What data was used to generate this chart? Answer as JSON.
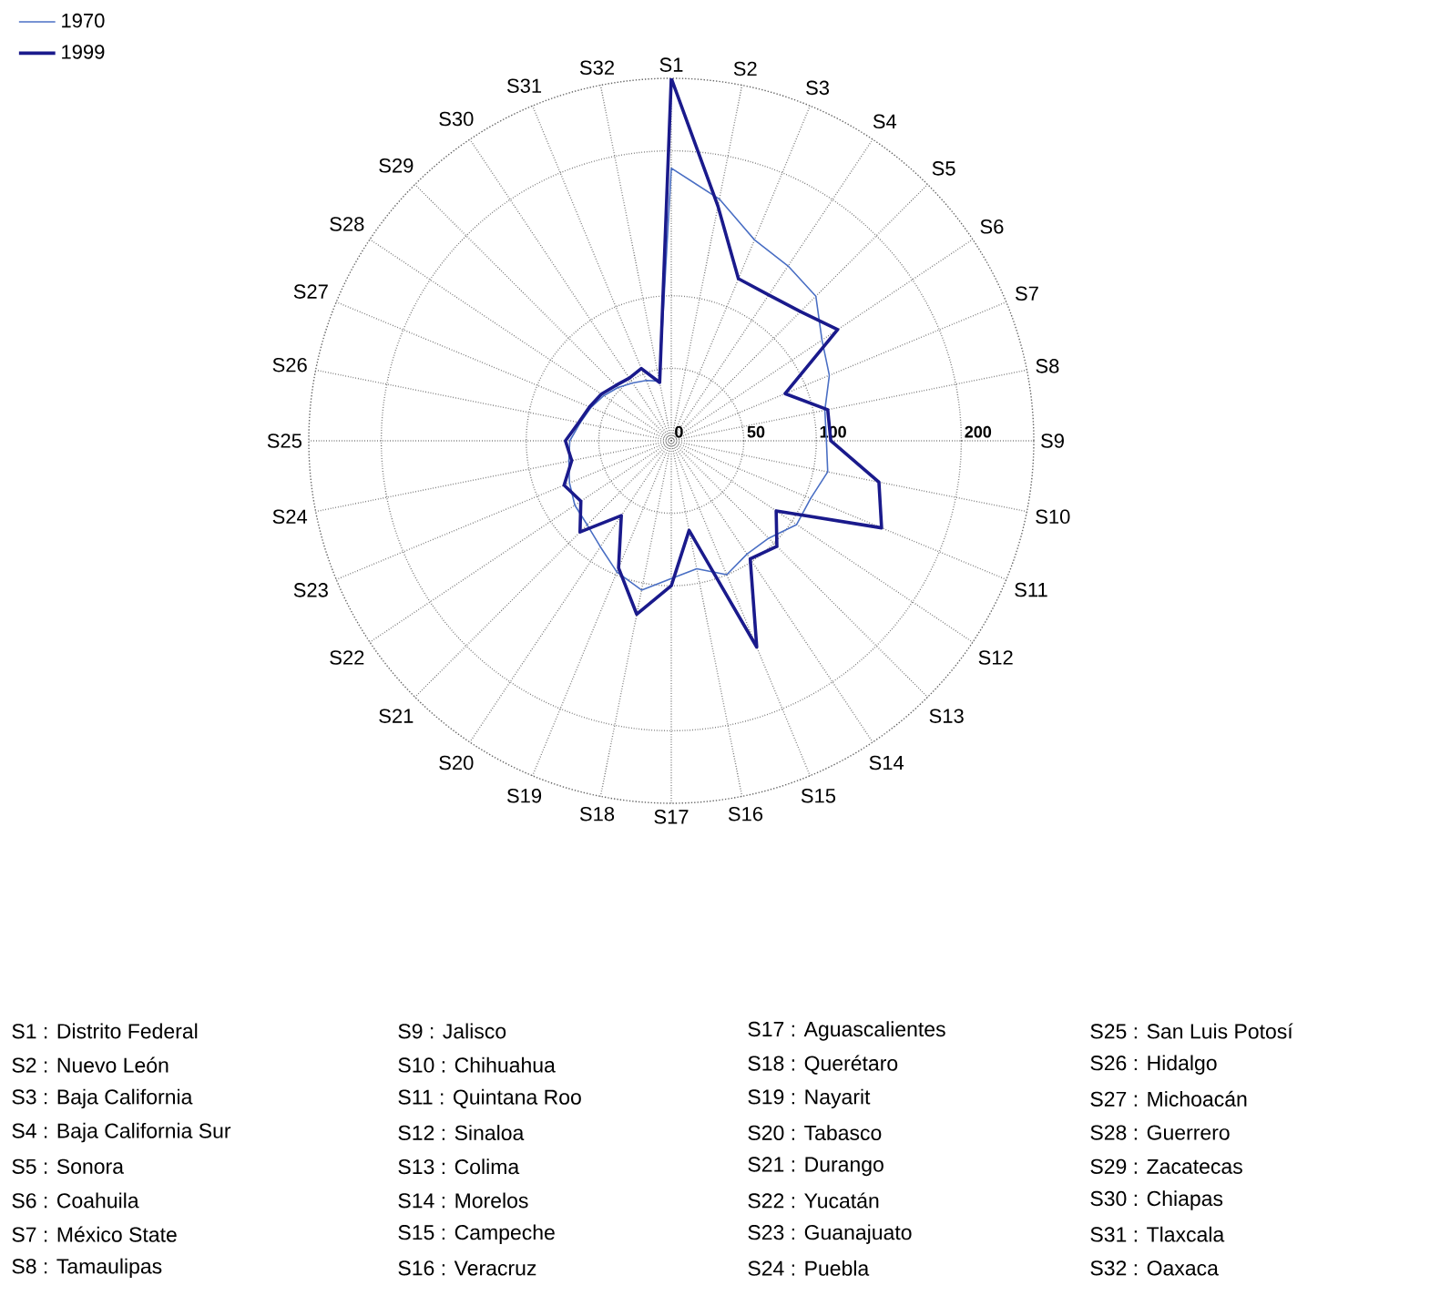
{
  "chart_data": {
    "type": "radar",
    "categories": [
      "S1",
      "S2",
      "S3",
      "S4",
      "S5",
      "S6",
      "S7",
      "S8",
      "S9",
      "S10",
      "S11",
      "S12",
      "S13",
      "S14",
      "S15",
      "S16",
      "S17",
      "S18",
      "S19",
      "S20",
      "S21",
      "S22",
      "S23",
      "S24",
      "S25",
      "S26",
      "S27",
      "S28",
      "S29",
      "S30",
      "S31",
      "S32"
    ],
    "series": [
      {
        "name": "1970",
        "color": "#4a6fc4",
        "values": [
          188,
          170,
          150,
          145,
          141,
          125,
          118,
          108,
          107,
          110,
          104,
          104,
          95,
          94,
          100,
          90,
          95,
          105,
          98,
          88,
          82,
          80,
          76,
          72,
          70,
          64,
          60,
          56,
          52,
          48,
          45,
          42
        ]
      },
      {
        "name": "1999",
        "color": "#1a1a8c",
        "values": [
          250,
          165,
          121,
          121,
          126,
          138,
          85,
          110,
          110,
          146,
          157,
          87,
          103,
          98,
          154,
          63,
          100,
          122,
          95,
          62,
          89,
          75,
          80,
          70,
          73,
          65,
          61,
          58,
          54,
          52,
          54,
          41
        ]
      }
    ],
    "ylim": [
      0,
      250
    ],
    "yticks": [
      0,
      50,
      100,
      200
    ],
    "grid": true,
    "legend": "top left",
    "annotations": [
      "S1 : Distrito Federal",
      "S2 : Nuevo León",
      "S3 : Baja California",
      "S4 : Baja California Sur",
      "S5 : Sonora",
      "S6 : Coahuila",
      "S7 : México State",
      "S8 : Tamaulipas",
      "S9 : Jalisco",
      "S10 : Chihuahua",
      "S11 : Quintana Roo",
      "S12 : Sinaloa",
      "S13 : Colima",
      "S14 : Morelos",
      "S15 : Campeche",
      "S16 : Veracruz",
      "S17 : Aguascalientes",
      "S18 : Querétaro",
      "S19 : Nayarit",
      "S20 : Tabasco",
      "S21 : Durango",
      "S22 : Yucatán",
      "S23 : Guanajuato",
      "S24 : Puebla",
      "S25 : San Luis Potosí",
      "S26 : Hidalgo",
      "S27 : Michoacán",
      "S28 : Guerrero",
      "S29 : Zacatecas",
      "S30 : Chiapas",
      "S31 : Tlaxcala",
      "S32 : Oaxaca"
    ]
  }
}
